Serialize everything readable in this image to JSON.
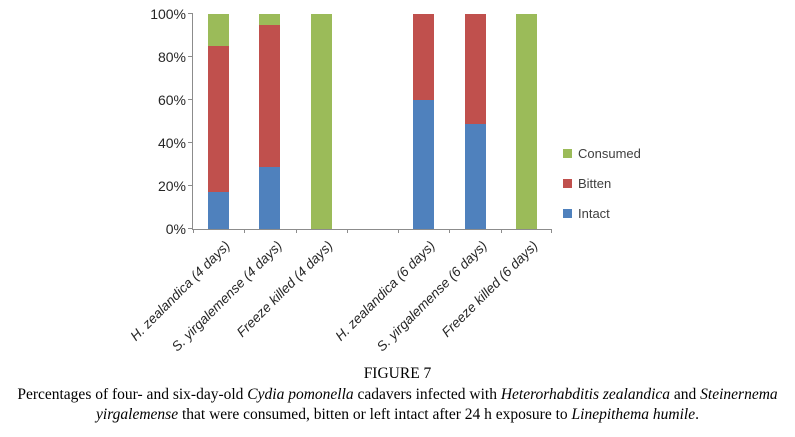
{
  "figure": {
    "label": "FIGURE 7",
    "caption_segments": [
      {
        "text": "Percentages of four- and six-day-old ",
        "italic": false
      },
      {
        "text": "Cydia pomonella",
        "italic": true
      },
      {
        "text": " cadavers infected with ",
        "italic": false
      },
      {
        "text": "Heterorhabditis zealandica",
        "italic": true
      },
      {
        "text": " and ",
        "italic": false
      },
      {
        "text": "Steinernema yirgalemense",
        "italic": true
      },
      {
        "text": " that were consumed, bitten or left intact after 24 h exposure to ",
        "italic": false
      },
      {
        "text": "Linepithema humile",
        "italic": true
      },
      {
        "text": ".",
        "italic": false
      }
    ]
  },
  "chart_data": {
    "type": "bar",
    "stacked": true,
    "title": "",
    "xlabel": "",
    "ylabel": "",
    "ylim": [
      0,
      100
    ],
    "grid": false,
    "legend_position": "right",
    "legend_order_top_to_bottom": [
      "Consumed",
      "Bitten",
      "Intact"
    ],
    "yticks": [
      "0%",
      "20%",
      "40%",
      "60%",
      "80%",
      "100%"
    ],
    "categories": [
      "H. zealandica (4 days)",
      "S. yirgalemense (4 days)",
      "Freeze killed (4 days)",
      "",
      "H. zealandica (6 days)",
      "S. yirgalemense (6 days)",
      "Freeze killed (6 days)"
    ],
    "series": [
      {
        "name": "Intact",
        "color": "#4f81bd",
        "values": [
          17,
          29,
          0,
          null,
          60,
          49,
          0
        ]
      },
      {
        "name": "Bitten",
        "color": "#c0504d",
        "values": [
          68,
          66,
          0,
          null,
          40,
          51,
          0
        ]
      },
      {
        "name": "Consumed",
        "color": "#9bbb59",
        "values": [
          15,
          5,
          100,
          null,
          0,
          0,
          100
        ]
      }
    ],
    "axis_color": "#8c8c8c",
    "tick_label_color": "#262626"
  }
}
